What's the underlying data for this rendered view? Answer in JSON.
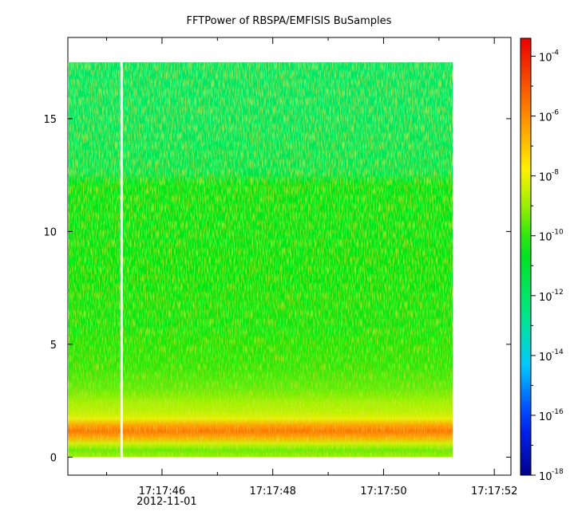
{
  "chart_data": {
    "type": "heatmap",
    "title": "FFTPower of RBSPA/EMFISIS  BuSamples",
    "xlabel": "",
    "ylabel": "",
    "x_start_label": "17:17:44.3",
    "x_ticks": [
      {
        "value": 46,
        "label": "17:17:46",
        "date": "2012-11-01"
      },
      {
        "value": 48,
        "label": "17:17:48"
      },
      {
        "value": 50,
        "label": "17:17:50"
      },
      {
        "value": 52,
        "label": "17:17:52"
      }
    ],
    "x_minor_ticks": [
      45,
      47,
      49,
      51
    ],
    "xlim": [
      44.3,
      52.3
    ],
    "data_x_range": [
      44.3,
      51.25
    ],
    "gap_x": 45.27,
    "y_ticks": [
      0,
      5,
      10,
      15
    ],
    "ylim": [
      -0.8,
      18.6
    ],
    "data_y_range": [
      0,
      17.5
    ],
    "colorbar": {
      "scale": "log",
      "range_exp": [
        -18,
        -3.4
      ],
      "ticks": [
        {
          "base": "10",
          "exp": "-4",
          "value_exp": -4
        },
        {
          "base": "10",
          "exp": "-6",
          "value_exp": -6
        },
        {
          "base": "10",
          "exp": "-8",
          "value_exp": -8
        },
        {
          "base": "10",
          "exp": "-10",
          "value_exp": -10
        },
        {
          "base": "10",
          "exp": "-12",
          "value_exp": -12
        },
        {
          "base": "10",
          "exp": "-14",
          "value_exp": -14
        },
        {
          "base": "10",
          "exp": "-16",
          "value_exp": -16
        },
        {
          "base": "10",
          "exp": "-18",
          "value_exp": -18
        }
      ]
    },
    "power_profile_log10": [
      {
        "y": 0.0,
        "v": -9.0
      },
      {
        "y": 0.3,
        "v": -9.5
      },
      {
        "y": 0.6,
        "v": -8.4
      },
      {
        "y": 0.9,
        "v": -6.4
      },
      {
        "y": 1.15,
        "v": -5.6
      },
      {
        "y": 1.4,
        "v": -6.3
      },
      {
        "y": 1.7,
        "v": -8.1
      },
      {
        "y": 2.0,
        "v": -8.6
      },
      {
        "y": 2.4,
        "v": -8.9
      },
      {
        "y": 3.0,
        "v": -9.5
      },
      {
        "y": 4.0,
        "v": -10.0
      },
      {
        "y": 6.0,
        "v": -10.3
      },
      {
        "y": 9.0,
        "v": -10.5
      },
      {
        "y": 12.1,
        "v": -10.6
      },
      {
        "y": 12.6,
        "v": -11.6
      },
      {
        "y": 15.0,
        "v": -11.9
      },
      {
        "y": 17.5,
        "v": -12.0
      }
    ]
  }
}
